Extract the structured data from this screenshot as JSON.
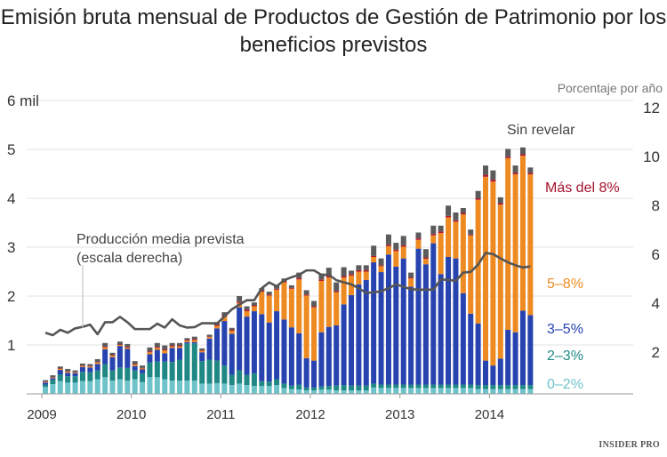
{
  "title": "Emisión bruta mensual de Productos de Gestión de Patrimonio por los beneficios previstos",
  "logo": "INSIDER PRO",
  "chart_data": {
    "type": "bar",
    "stacked": true,
    "title": "Emisión bruta mensual de Productos de Gestión de Patrimonio por los beneficios previstos",
    "left_axis": {
      "ticks": [
        "",
        "1",
        "2",
        "3",
        "4",
        "5",
        "6 mil"
      ],
      "range": [
        0,
        6000
      ],
      "unit_label": "6 mil"
    },
    "right_axis": {
      "label": "Porcentaje por año",
      "ticks": [
        "2",
        "4",
        "6",
        "8",
        "10",
        "12"
      ],
      "range": [
        0,
        12
      ]
    },
    "x_tick_labels": [
      "2009",
      "2010",
      "2011",
      "2012",
      "2013",
      "2014"
    ],
    "x_start": "2009-01",
    "x_end": "2014-06",
    "frequency": "monthly",
    "grid": true,
    "colors": {
      "c02": "#6ec3cb",
      "c23": "#1f8884",
      "c35": "#2643b0",
      "c58": "#ee8a22",
      "c8": "#b3152d",
      "und": "#5b5b5b",
      "line": "#555555"
    },
    "series": [
      {
        "key": "c02",
        "name": "0–2%",
        "values": [
          0.14,
          0.2,
          0.26,
          0.23,
          0.23,
          0.26,
          0.26,
          0.3,
          0.34,
          0.27,
          0.3,
          0.27,
          0.3,
          0.24,
          0.34,
          0.34,
          0.3,
          0.27,
          0.27,
          0.27,
          0.27,
          0.21,
          0.21,
          0.22,
          0.21,
          0.18,
          0.21,
          0.18,
          0.16,
          0.16,
          0.16,
          0.18,
          0.12,
          0.1,
          0.09,
          0.07,
          0.07,
          0.09,
          0.09,
          0.07,
          0.07,
          0.07,
          0.07,
          0.07,
          0.13,
          0.12,
          0.12,
          0.12,
          0.12,
          0.12,
          0.12,
          0.12,
          0.12,
          0.12,
          0.12,
          0.12,
          0.12,
          0.12,
          0.1,
          0.1,
          0.1,
          0.1,
          0.1,
          0.1,
          0.1,
          0.1
        ]
      },
      {
        "key": "c23",
        "name": "2–3%",
        "values": [
          0.05,
          0.09,
          0.14,
          0.13,
          0.13,
          0.19,
          0.18,
          0.18,
          0.27,
          0.21,
          0.24,
          0.26,
          0.18,
          0.18,
          0.3,
          0.32,
          0.36,
          0.38,
          0.43,
          0.76,
          0.76,
          0.46,
          0.49,
          0.46,
          0.37,
          0.21,
          0.27,
          0.21,
          0.26,
          0.1,
          0.09,
          0.12,
          0.09,
          0.07,
          0.1,
          0.06,
          0.06,
          0.06,
          0.07,
          0.1,
          0.11,
          0.1,
          0.1,
          0.1,
          0.08,
          0.07,
          0.07,
          0.07,
          0.07,
          0.07,
          0.07,
          0.07,
          0.07,
          0.07,
          0.07,
          0.07,
          0.07,
          0.07,
          0.08,
          0.08,
          0.08,
          0.08,
          0.08,
          0.08,
          0.08,
          0.08
        ]
      },
      {
        "key": "c35",
        "name": "3–5%",
        "values": [
          0.04,
          0.03,
          0.09,
          0.07,
          0.06,
          0.1,
          0.1,
          0.13,
          0.3,
          0.27,
          0.44,
          0.39,
          0.09,
          0.08,
          0.17,
          0.24,
          0.17,
          0.29,
          0.24,
          0.03,
          0.03,
          0.18,
          0.43,
          0.66,
          0.91,
          0.84,
          1.29,
          1.19,
          1.27,
          1.37,
          1.21,
          1.39,
          1.31,
          1.19,
          1.05,
          0.6,
          0.55,
          1.11,
          1.21,
          1.23,
          1.65,
          1.85,
          2.07,
          2.16,
          2.48,
          2.3,
          2.66,
          2.41,
          2.58,
          2.0,
          2.78,
          2.46,
          2.89,
          2.26,
          2.61,
          2.58,
          1.87,
          1.45,
          1.26,
          0.5,
          0.4,
          0.54,
          1.13,
          1.08,
          1.52,
          1.43
        ]
      },
      {
        "key": "c58",
        "name": "5–8%",
        "values": [
          0.01,
          0.01,
          0.02,
          0.02,
          0.01,
          0.02,
          0.02,
          0.03,
          0.04,
          0.03,
          0.02,
          0.02,
          0.03,
          0.02,
          0.04,
          0.04,
          0.06,
          0.03,
          0.03,
          0.03,
          0.04,
          0.03,
          0.03,
          0.05,
          0.09,
          0.06,
          0.09,
          0.11,
          0.1,
          0.46,
          0.55,
          0.44,
          0.76,
          0.79,
          1.1,
          1.28,
          1.09,
          1.05,
          1.01,
          0.68,
          0.55,
          0.4,
          0.26,
          0.17,
          0.11,
          0.12,
          0.17,
          0.32,
          0.24,
          0.17,
          0.18,
          0.11,
          0.16,
          0.84,
          0.81,
          0.75,
          1.61,
          1.6,
          2.53,
          3.76,
          3.76,
          3.15,
          3.51,
          3.23,
          3.17,
          2.88
        ]
      },
      {
        "key": "c8",
        "name": "Más del 8%",
        "values": [
          0.01,
          0.01,
          0.01,
          0.01,
          0.01,
          0.01,
          0.01,
          0.01,
          0.02,
          0.01,
          0.01,
          0.02,
          0.01,
          0.01,
          0.02,
          0.02,
          0.02,
          0.02,
          0.02,
          0.01,
          0.02,
          0.01,
          0.01,
          0.02,
          0.02,
          0.02,
          0.02,
          0.03,
          0.02,
          0.02,
          0.02,
          0.02,
          0.02,
          0.02,
          0.03,
          0.02,
          0.02,
          0.03,
          0.03,
          0.02,
          0.03,
          0.03,
          0.03,
          0.03,
          0.02,
          0.02,
          0.03,
          0.03,
          0.03,
          0.02,
          0.03,
          0.03,
          0.03,
          0.03,
          0.03,
          0.03,
          0.03,
          0.02,
          0.03,
          0.04,
          0.04,
          0.03,
          0.03,
          0.03,
          0.03,
          0.03
        ]
      },
      {
        "key": "und",
        "name": "Sin revelar",
        "values": [
          0.03,
          0.04,
          0.04,
          0.05,
          0.04,
          0.04,
          0.04,
          0.06,
          0.07,
          0.05,
          0.06,
          0.06,
          0.06,
          0.05,
          0.08,
          0.08,
          0.08,
          0.05,
          0.05,
          0.04,
          0.05,
          0.04,
          0.04,
          0.06,
          0.07,
          0.04,
          0.12,
          0.07,
          0.06,
          0.05,
          0.06,
          0.07,
          0.06,
          0.05,
          0.11,
          0.09,
          0.11,
          0.12,
          0.17,
          0.18,
          0.18,
          0.07,
          0.1,
          0.1,
          0.21,
          0.14,
          0.21,
          0.14,
          0.19,
          0.1,
          0.12,
          0.17,
          0.17,
          0.12,
          0.21,
          0.16,
          0.1,
          0.1,
          0.15,
          0.19,
          0.19,
          0.12,
          0.16,
          0.15,
          0.14,
          0.11
        ]
      }
    ],
    "line": {
      "name": "Producción media prevista",
      "label_note": "(escala derecha)",
      "axis": "right",
      "values": [
        2.5,
        2.4,
        2.62,
        2.5,
        2.68,
        2.74,
        2.83,
        2.44,
        2.93,
        2.93,
        3.15,
        2.93,
        2.65,
        2.65,
        2.65,
        2.87,
        2.71,
        3.05,
        2.8,
        2.71,
        2.73,
        2.89,
        2.89,
        2.88,
        3.16,
        3.46,
        3.65,
        3.83,
        3.83,
        4.32,
        4.56,
        4.4,
        4.65,
        4.77,
        4.87,
        5.05,
        5.05,
        4.87,
        4.87,
        4.65,
        4.56,
        4.48,
        4.32,
        4.13,
        4.15,
        4.2,
        4.32,
        4.48,
        4.38,
        4.28,
        4.26,
        4.26,
        4.26,
        4.68,
        4.66,
        4.62,
        4.96,
        4.99,
        5.29,
        5.76,
        5.72,
        5.54,
        5.38,
        5.26,
        5.17,
        5.21
      ]
    }
  }
}
